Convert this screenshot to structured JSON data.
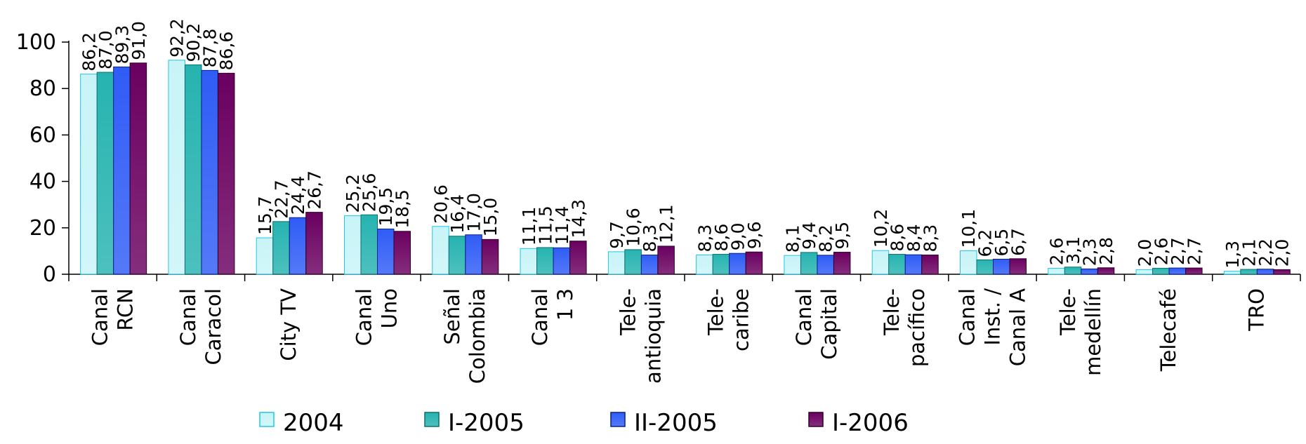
{
  "chart_data": {
    "type": "bar",
    "title": "",
    "xlabel": "",
    "ylabel": "",
    "ylim": [
      0,
      100
    ],
    "yticks": [
      "0",
      "20",
      "40",
      "60",
      "80",
      "100"
    ],
    "grid": false,
    "legend_position": "bottom",
    "categories": [
      [
        "Canal",
        "RCN"
      ],
      [
        "Canal",
        "Caracol"
      ],
      [
        "City TV"
      ],
      [
        "Canal",
        "Uno"
      ],
      [
        "Señal",
        "Colombia"
      ],
      [
        "Canal",
        "1 3"
      ],
      [
        "Tele-",
        "antioquia"
      ],
      [
        "Tele-",
        "caribe"
      ],
      [
        "Canal",
        "Capital"
      ],
      [
        "Tele-",
        "pacífico"
      ],
      [
        "Canal",
        "Inst. /",
        "Canal A"
      ],
      [
        "Tele-",
        "medellín"
      ],
      [
        "Telecafé"
      ],
      [
        "TRO"
      ]
    ],
    "series": [
      {
        "name": "2004",
        "color": "#c8f4f8",
        "stroke": "#1ec8e6",
        "values": [
          86.2,
          92.2,
          15.7,
          25.2,
          20.6,
          11.1,
          9.7,
          8.3,
          8.1,
          10.2,
          10.1,
          2.6,
          2.0,
          1.3
        ],
        "labels": [
          "86,2",
          "92,2",
          "15,7",
          "25,2",
          "20,6",
          "11,1",
          "9,7",
          "8,3",
          "8,1",
          "10,2",
          "10,1",
          "2,6",
          "2,0",
          "1,3"
        ]
      },
      {
        "name": "I-2005",
        "color": "#26b3b0",
        "stroke": "#0e6f6c",
        "values": [
          87.0,
          90.2,
          22.7,
          25.6,
          16.4,
          11.5,
          10.6,
          8.6,
          9.4,
          8.6,
          6.2,
          3.1,
          2.6,
          2.1
        ],
        "labels": [
          "87,0",
          "90,2",
          "22,7",
          "25,6",
          "16,4",
          "11,5",
          "10,6",
          "8,6",
          "9,4",
          "8,6",
          "6,2",
          "3,1",
          "2,6",
          "2,1"
        ]
      },
      {
        "name": "II-2005",
        "color": "#2f5cf6",
        "stroke": "#0b1f8a",
        "values": [
          89.3,
          87.8,
          24.4,
          19.5,
          17.0,
          11.4,
          8.3,
          9.0,
          8.2,
          8.4,
          6.5,
          2.3,
          2.7,
          2.2
        ],
        "labels": [
          "89,3",
          "87,8",
          "24,4",
          "19,5",
          "17,0",
          "11,4",
          "8,3",
          "9,0",
          "8,2",
          "8,4",
          "6,5",
          "2,3",
          "2,7",
          "2,2"
        ]
      },
      {
        "name": "I-2006",
        "color": "#6a0060",
        "stroke": "#2e0029",
        "values": [
          91.0,
          86.6,
          26.7,
          18.5,
          15.0,
          14.3,
          12.1,
          9.6,
          9.5,
          8.3,
          6.7,
          2.8,
          2.7,
          2.0
        ],
        "labels": [
          "91,0",
          "86,6",
          "26,7",
          "18,5",
          "15,0",
          "14,3",
          "12,1",
          "9,6",
          "9,5",
          "8,3",
          "6,7",
          "2,8",
          "2,7",
          "2,0"
        ]
      }
    ]
  }
}
